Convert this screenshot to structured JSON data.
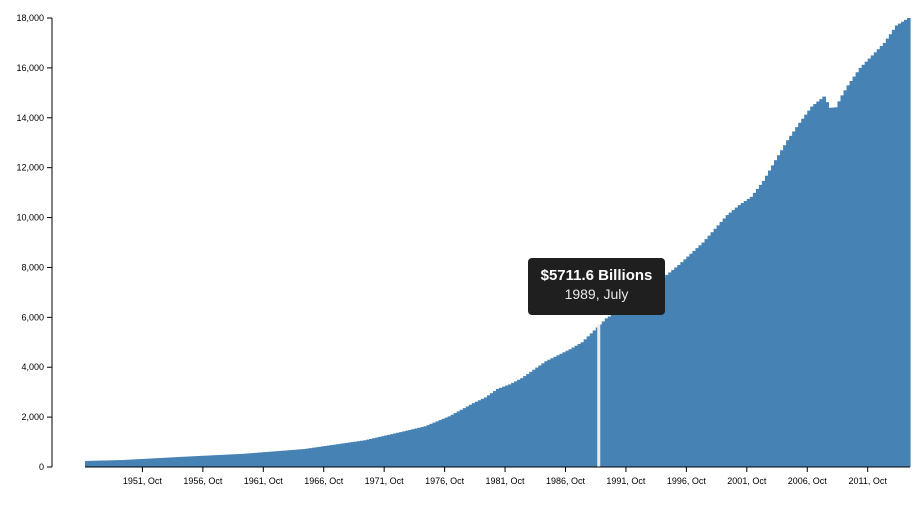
{
  "chart_data": {
    "type": "bar",
    "title": "",
    "xlabel": "",
    "ylabel": "",
    "ylim": [
      0,
      18000
    ],
    "y_ticks": [
      "0",
      "2,000",
      "4,000",
      "6,000",
      "8,000",
      "10,000",
      "12,000",
      "14,000",
      "16,000",
      "18,000"
    ],
    "x_ticks": [
      "1951, Oct",
      "1956, Oct",
      "1961, Oct",
      "1966, Oct",
      "1971, Oct",
      "1976, Oct",
      "1981, Oct",
      "1986, Oct",
      "1991, Oct",
      "1996, Oct",
      "2001, Oct",
      "2006, Oct",
      "2011, Oct"
    ],
    "x_range": [
      1947.0,
      2015.25
    ],
    "series": [
      {
        "bar_color": "#4682b4",
        "x": [
          1947.0,
          1950.0,
          1955.0,
          1960.0,
          1965.0,
          1970.0,
          1973.0,
          1975.0,
          1977.0,
          1979.0,
          1980.0,
          1981.0,
          1982.0,
          1983.0,
          1985.0,
          1987.0,
          1988.0,
          1989.5,
          1990.0,
          1992.0,
          1994.0,
          1996.0,
          1998.0,
          2000.0,
          2001.0,
          2002.0,
          2003.0,
          2004.0,
          2005.0,
          2006.0,
          2007.0,
          2008.0,
          2008.5,
          2009.0,
          2009.5,
          2010.0,
          2011.0,
          2012.0,
          2013.0,
          2014.0,
          2015.0
        ],
        "values": [
          243,
          280,
          410,
          530,
          720,
          1070,
          1400,
          1630,
          2030,
          2560,
          2790,
          3130,
          3310,
          3560,
          4240,
          4720,
          5000,
          5712,
          5960,
          6550,
          7300,
          8100,
          9000,
          10100,
          10500,
          10830,
          11470,
          12300,
          13100,
          13800,
          14450,
          14850,
          14400,
          14420,
          14900,
          15300,
          16000,
          16500,
          17000,
          17700,
          18000
        ]
      }
    ]
  },
  "tooltip": {
    "value": "$5711.6 Billions",
    "date": "1989, July",
    "x": 1989.5,
    "highlight_color": "#ececec"
  }
}
